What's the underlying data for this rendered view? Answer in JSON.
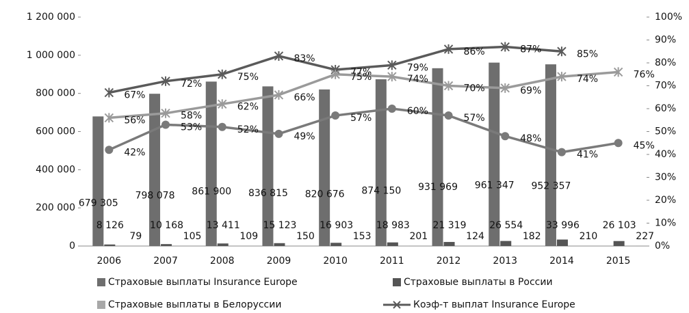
{
  "chart_data": {
    "type": "bar-line",
    "categories": [
      "2006",
      "2007",
      "2008",
      "2009",
      "2010",
      "2011",
      "2012",
      "2013",
      "2014",
      "2015"
    ],
    "series": [
      {
        "name": "Страховые выплаты Insurance Europe",
        "type": "bar",
        "color": "#6e6e6e",
        "values": [
          679305,
          798078,
          861900,
          836815,
          820676,
          874150,
          931969,
          961347,
          952357,
          null
        ],
        "value_labels": [
          "679 305",
          "798 078",
          "861 900",
          "836 815",
          "820 676",
          "874 150",
          "931 969",
          "961 347",
          "952 357",
          null
        ]
      },
      {
        "name": "Страховые выплаты в России",
        "type": "bar",
        "color": "#555555",
        "values": [
          8126,
          10168,
          13411,
          15123,
          16903,
          18983,
          21319,
          26554,
          33996,
          26103
        ],
        "value_labels": [
          "8 126",
          "10 168",
          "13 411",
          "15 123",
          "16 903",
          "18 983",
          "21 319",
          "26 554",
          "33 996",
          "26 103"
        ]
      },
      {
        "name": "Страховые выплаты в Белоруссии",
        "type": "bar",
        "color": "#a8a8a8",
        "values": [
          79,
          105,
          109,
          150,
          153,
          201,
          124,
          182,
          210,
          227
        ]
      },
      {
        "name": "Коэф-т выплат Insurance Europe",
        "type": "line",
        "axis": "y2",
        "color": "#5a5a5a",
        "marker": "x",
        "values": [
          67,
          72,
          75,
          83,
          77,
          79,
          86,
          87,
          85,
          null
        ],
        "value_labels": [
          "67%",
          "72%",
          "75%",
          "83%",
          "77%",
          "79%",
          "86%",
          "87%",
          "85%",
          null
        ]
      },
      {
        "type": "line",
        "axis": "y2",
        "color": "#9a9a9a",
        "marker": "x",
        "values": [
          56,
          58,
          62,
          66,
          75,
          74,
          70,
          69,
          74,
          76
        ],
        "value_labels": [
          "56%",
          "58%",
          "62%",
          "66%",
          "75%",
          "74%",
          "70%",
          "69%",
          "74%",
          "76%"
        ]
      },
      {
        "type": "line",
        "axis": "y2",
        "color": "#7a7a7a",
        "marker": "circle",
        "values": [
          42,
          53,
          52,
          49,
          57,
          60,
          57,
          48,
          41,
          45
        ],
        "value_labels": [
          "42%",
          "53%",
          "52%",
          "49%",
          "57%",
          "60%",
          "57%",
          "48%",
          "41%",
          "45%"
        ]
      }
    ],
    "ylim": [
      0,
      1200000
    ],
    "yticks": [
      0,
      {
        "value": 200000,
        "label": "200 000"
      },
      {
        "value": 400000,
        "label": "400 000"
      },
      {
        "value": 600000,
        "label": "600 000"
      },
      {
        "value": 800000,
        "label": "800 000"
      },
      {
        "value": 1000000,
        "label": "1 000 000"
      },
      {
        "value": 1200000,
        "label": "1 200 000"
      }
    ],
    "y2lim": [
      0,
      100
    ],
    "y2ticks": [
      {
        "value": 0,
        "label": "0%"
      },
      {
        "value": 10,
        "label": "10%"
      },
      {
        "value": 20,
        "label": "20%"
      },
      {
        "value": 30,
        "label": "30%"
      },
      {
        "value": 40,
        "label": "40%"
      },
      {
        "value": 50,
        "label": "50%"
      },
      {
        "value": 60,
        "label": "60%"
      },
      {
        "value": 70,
        "label": "70%"
      },
      {
        "value": 80,
        "label": "80%"
      },
      {
        "value": 90,
        "label": "90%"
      },
      {
        "value": 100,
        "label": "100%"
      }
    ],
    "grid": false
  }
}
